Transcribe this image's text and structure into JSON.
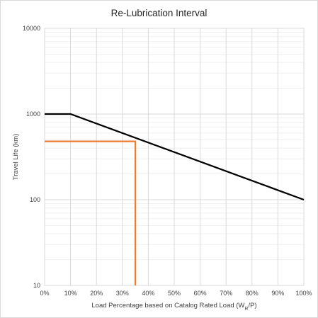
{
  "chart_data": {
    "type": "line",
    "title": "Re-Lubrication Interval",
    "xlabel": {
      "prefix": "Load Percentage based on Catalog Rated Load (W",
      "subscript": "R",
      "suffix": "/P)"
    },
    "ylabel": "Travel Life (km)",
    "x_scale": "linear",
    "y_scale": "log",
    "xlim": [
      0,
      100
    ],
    "ylim": [
      10,
      10000
    ],
    "x_ticks": [
      0,
      10,
      20,
      30,
      40,
      50,
      60,
      70,
      80,
      90,
      100
    ],
    "x_tick_labels": [
      "0%",
      "10%",
      "20%",
      "30%",
      "40%",
      "50%",
      "60%",
      "70%",
      "80%",
      "90%",
      "100%"
    ],
    "y_ticks": [
      10,
      100,
      1000,
      10000
    ],
    "y_tick_labels": [
      "10",
      "100",
      "1000",
      "10000"
    ],
    "grid": true,
    "legend": "none",
    "series": [
      {
        "color": "#000000",
        "x": [
          0,
          10,
          100
        ],
        "y": [
          1000,
          1000,
          100
        ]
      },
      {
        "color": "#ED7D31",
        "x": [
          0,
          35,
          35
        ],
        "y": [
          480,
          480,
          10
        ]
      }
    ]
  }
}
